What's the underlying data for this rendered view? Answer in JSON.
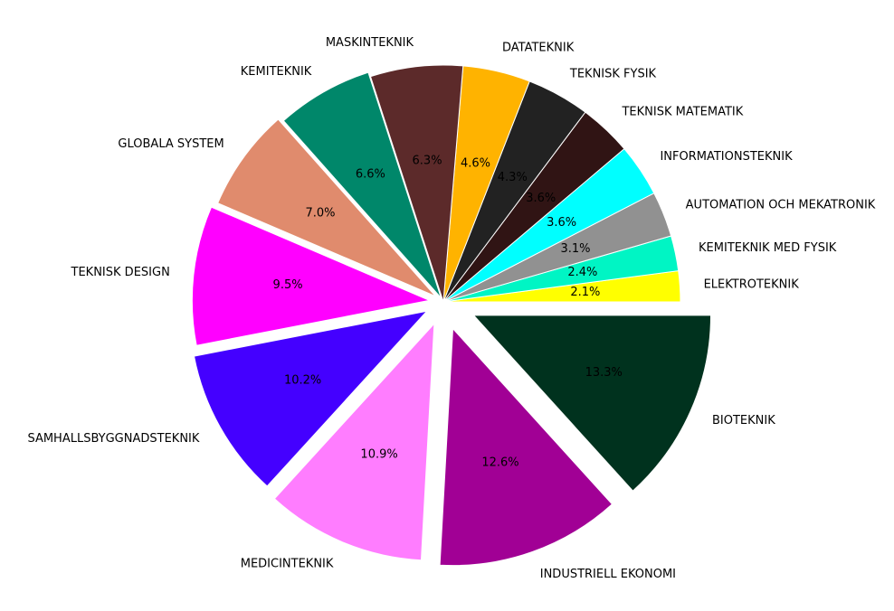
{
  "chart_data": {
    "type": "pie",
    "title": "",
    "start_angle_deg": 0,
    "direction": "counterclockwise",
    "slices": [
      {
        "label": "ELEKTROTEKNIK",
        "value": 2.1,
        "pct_label": "2.1%",
        "color": "#ffff00",
        "explode": 0.0
      },
      {
        "label": "KEMITEKNIK MED FYSIK",
        "value": 2.4,
        "pct_label": "2.4%",
        "color": "#00f5c4",
        "explode": 0.0
      },
      {
        "label": "AUTOMATION OCH MEKATRONIK",
        "value": 3.1,
        "pct_label": "3.1%",
        "color": "#919191",
        "explode": 0.0
      },
      {
        "label": "INFORMATIONSTEKNIK",
        "value": 3.6,
        "pct_label": "3.6%",
        "color": "#00ffff",
        "explode": 0.0
      },
      {
        "label": "TEKNISK MATEMATIK",
        "value": 3.6,
        "pct_label": "3.6%",
        "color": "#301414",
        "explode": 0.0
      },
      {
        "label": "TEKNISK FYSIK",
        "value": 4.3,
        "pct_label": "4.3%",
        "color": "#222222",
        "explode": 0.0
      },
      {
        "label": "DATATEKNIK",
        "value": 4.6,
        "pct_label": "4.6%",
        "color": "#ffb300",
        "explode": 0.0
      },
      {
        "label": "MASKINTEKNIK",
        "value": 6.3,
        "pct_label": "6.3%",
        "color": "#5c2a2a",
        "explode": 0.0
      },
      {
        "label": "KEMITEKNIK",
        "value": 6.6,
        "pct_label": "6.6%",
        "color": "#00876a",
        "explode": 0.02
      },
      {
        "label": "GLOBALA SYSTEM",
        "value": 7.0,
        "pct_label": "7.0%",
        "color": "#e08b6d",
        "explode": 0.04
      },
      {
        "label": "TEKNISK DESIGN",
        "value": 9.5,
        "pct_label": "9.5%",
        "color": "#ff00ff",
        "explode": 0.06
      },
      {
        "label": "SAMHALLSBYGGNADSTEKNIK",
        "value": 10.2,
        "pct_label": "10.2%",
        "color": "#4400ff",
        "explode": 0.08
      },
      {
        "label": "MEDICINTEKNIK",
        "value": 10.9,
        "pct_label": "10.9%",
        "color": "#ff7dff",
        "explode": 0.1
      },
      {
        "label": "INDUSTRIELL EKONOMI",
        "value": 12.6,
        "pct_label": "12.6%",
        "color": "#a10095",
        "explode": 0.12
      },
      {
        "label": "BIOTEKNIK",
        "value": 13.3,
        "pct_label": "13.3%",
        "color": "#00321e",
        "explode": 0.14
      }
    ]
  }
}
